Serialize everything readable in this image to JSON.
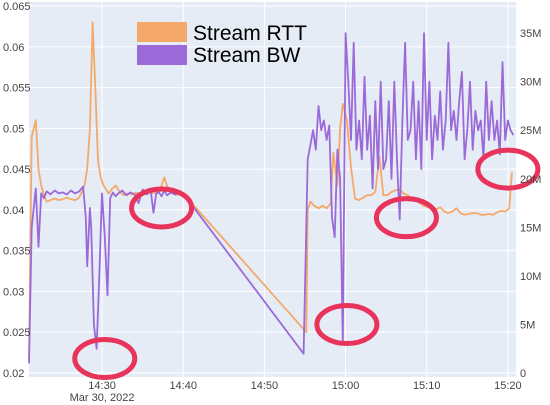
{
  "chart_data": {
    "type": "line",
    "title": "",
    "xlabel": "",
    "ylabel": "",
    "y2label": "",
    "x_ticks": [
      "14:30",
      "14:40",
      "14:50",
      "15:00",
      "15:10",
      "15:20"
    ],
    "x_subtick": "Mar 30, 2022",
    "y_left_ticks": [
      "0.02",
      "0.025",
      "0.03",
      "0.035",
      "0.04",
      "0.045",
      "0.05",
      "0.055",
      "0.06",
      "0.065"
    ],
    "y_right_ticks": [
      "0",
      "5M",
      "10M",
      "15M",
      "20M",
      "25M",
      "30M",
      "35M"
    ],
    "ylim_left": [
      0.0195,
      0.0655
    ],
    "ylim_right": [
      -0.4,
      38.2
    ],
    "xlim": [
      "14:21:00",
      "15:21:00"
    ],
    "legend_position": "top",
    "grid": true,
    "series": [
      {
        "name": "Stream RTT",
        "axis": "left",
        "color": "#f4a86a",
        "x": [
          "14:21:00",
          "14:21:20",
          "14:21:50",
          "14:22:10",
          "14:22:30",
          "14:22:50",
          "14:23:10",
          "14:23:40",
          "14:24:10",
          "14:24:40",
          "14:25:10",
          "14:25:40",
          "14:26:10",
          "14:26:40",
          "14:27:10",
          "14:27:30",
          "14:27:50",
          "14:28:10",
          "14:28:30",
          "14:28:50",
          "14:29:10",
          "14:29:30",
          "14:29:50",
          "14:30:10",
          "14:30:30",
          "14:30:50",
          "14:31:10",
          "14:31:40",
          "14:32:10",
          "14:32:40",
          "14:33:10",
          "14:33:40",
          "14:34:10",
          "14:34:40",
          "14:35:10",
          "14:35:40",
          "14:36:10",
          "14:36:40",
          "14:37:10",
          "14:37:40",
          "14:38:10",
          "14:38:40",
          "14:39:10",
          "14:39:40",
          "14:40:00",
          "14:55:10",
          "14:55:20",
          "14:55:40",
          "14:56:10",
          "14:56:40",
          "14:57:10",
          "14:57:40",
          "14:58:10",
          "14:58:30",
          "14:59:00",
          "14:59:20",
          "14:59:40",
          "15:00:10",
          "15:00:40",
          "15:01:10",
          "15:01:40",
          "15:02:10",
          "15:02:40",
          "15:03:10",
          "15:03:40",
          "15:04:10",
          "15:04:40",
          "15:05:10",
          "15:05:40",
          "15:06:10",
          "15:06:40",
          "15:07:10",
          "15:07:40",
          "15:08:10",
          "15:08:40",
          "15:09:10",
          "15:09:40",
          "15:10:10",
          "15:10:40",
          "15:11:10",
          "15:11:40",
          "15:12:10",
          "15:12:40",
          "15:13:10",
          "15:13:40",
          "15:14:10",
          "15:14:40",
          "15:15:10",
          "15:15:40",
          "15:16:10",
          "15:16:40",
          "15:17:10",
          "15:17:40",
          "15:18:10",
          "15:18:40",
          "15:19:10",
          "15:19:40",
          "15:20:10",
          "15:20:30"
        ],
        "values": [
          0.0215,
          0.049,
          0.051,
          0.045,
          0.043,
          0.0418,
          0.041,
          0.0412,
          0.0414,
          0.0412,
          0.0413,
          0.0415,
          0.0413,
          0.0412,
          0.0415,
          0.0422,
          0.043,
          0.045,
          0.05,
          0.063,
          0.055,
          0.046,
          0.044,
          0.043,
          0.0425,
          0.042,
          0.0425,
          0.043,
          0.0422,
          0.0418,
          0.042,
          0.0419,
          0.0421,
          0.042,
          0.0422,
          0.0425,
          0.042,
          0.0422,
          0.0425,
          0.044,
          0.0425,
          0.042,
          0.0418,
          0.0423,
          0.042,
          0.025,
          0.04,
          0.041,
          0.0405,
          0.0402,
          0.0405,
          0.0402,
          0.0408,
          0.047,
          0.043,
          0.05,
          0.053,
          0.051,
          0.0452,
          0.0414,
          0.0412,
          0.0415,
          0.0418,
          0.0418,
          0.0422,
          0.0465,
          0.0418,
          0.0418,
          0.0422,
          0.0424,
          0.0425,
          0.042,
          0.0418,
          0.0413,
          0.0412,
          0.0408,
          0.0405,
          0.0403,
          0.0402,
          0.0401,
          0.0403,
          0.0398,
          0.0396,
          0.0398,
          0.0402,
          0.0396,
          0.0394,
          0.0395,
          0.0396,
          0.0396,
          0.0394,
          0.0394,
          0.0395,
          0.0394,
          0.0397,
          0.0399,
          0.0398,
          0.0402,
          0.0446
        ]
      },
      {
        "name": "Stream BW",
        "axis": "right",
        "color": "#9b6ad8",
        "x": [
          "14:21:00",
          "14:21:20",
          "14:21:50",
          "14:22:10",
          "14:22:30",
          "14:22:50",
          "14:23:10",
          "14:23:40",
          "14:24:10",
          "14:24:40",
          "14:25:10",
          "14:25:40",
          "14:26:10",
          "14:26:40",
          "14:27:10",
          "14:27:40",
          "14:28:00",
          "14:28:10",
          "14:28:30",
          "14:28:40",
          "14:29:00",
          "14:29:20",
          "14:29:40",
          "14:30:00",
          "14:30:20",
          "14:30:40",
          "14:31:00",
          "14:31:20",
          "14:31:40",
          "14:32:00",
          "14:32:30",
          "14:33:00",
          "14:33:30",
          "14:34:00",
          "14:34:30",
          "14:35:00",
          "14:35:30",
          "14:36:00",
          "14:36:20",
          "14:36:40",
          "14:37:00",
          "14:37:20",
          "14:37:40",
          "14:38:00",
          "14:38:30",
          "14:39:00",
          "14:39:30",
          "14:40:00",
          "14:54:50",
          "14:55:10",
          "14:55:20",
          "14:55:40",
          "14:56:00",
          "14:56:20",
          "14:56:40",
          "14:57:00",
          "14:57:20",
          "14:57:40",
          "14:58:00",
          "14:58:20",
          "14:58:40",
          "14:59:00",
          "14:59:20",
          "14:59:40",
          "15:00:00",
          "15:00:20",
          "15:00:40",
          "15:01:00",
          "15:01:20",
          "15:01:40",
          "15:02:00",
          "15:02:20",
          "15:02:40",
          "15:03:00",
          "15:03:20",
          "15:03:40",
          "15:04:00",
          "15:04:20",
          "15:04:40",
          "15:05:00",
          "15:05:20",
          "15:05:40",
          "15:06:00",
          "15:06:20",
          "15:06:40",
          "15:07:00",
          "15:07:20",
          "15:07:40",
          "15:08:00",
          "15:08:20",
          "15:08:40",
          "15:09:00",
          "15:09:20",
          "15:09:40",
          "15:10:00",
          "15:10:20",
          "15:10:40",
          "15:11:00",
          "15:11:20",
          "15:11:40",
          "15:12:00",
          "15:12:20",
          "15:12:40",
          "15:13:00",
          "15:13:20",
          "15:13:40",
          "15:14:00",
          "15:14:20",
          "15:14:40",
          "15:15:00",
          "15:15:20",
          "15:15:40",
          "15:16:00",
          "15:16:20",
          "15:16:40",
          "15:17:00",
          "15:17:20",
          "15:17:40",
          "15:18:00",
          "15:18:20",
          "15:18:40",
          "15:19:00",
          "15:19:20",
          "15:19:40",
          "15:20:00",
          "15:20:20",
          "15:20:40"
        ],
        "values": [
          1.0,
          15.0,
          19.0,
          13.0,
          18.5,
          18.0,
          18.7,
          18.4,
          18.8,
          18.5,
          18.6,
          18.4,
          18.8,
          18.5,
          18.7,
          19.2,
          16.0,
          11.0,
          17.0,
          15.0,
          5.0,
          2.5,
          10.0,
          18.5,
          14.0,
          8.0,
          18.0,
          18.6,
          18.2,
          18.5,
          18.8,
          18.3,
          18.6,
          18.4,
          17.5,
          18.9,
          18.4,
          18.7,
          16.5,
          18.5,
          18.6,
          18.2,
          18.8,
          18.3,
          18.6,
          18.4,
          18.6,
          18.5,
          2.0,
          15.0,
          22.0,
          23.5,
          25.0,
          23.0,
          27.5,
          25.0,
          26.0,
          24.0,
          25.5,
          16.0,
          14.0,
          23.0,
          20.0,
          3.0,
          35.0,
          30.0,
          24.0,
          34.0,
          23.0,
          26.0,
          22.0,
          30.5,
          23.0,
          26.5,
          19.0,
          28.0,
          21.0,
          30.0,
          21.0,
          22.0,
          28.0,
          20.0,
          30.0,
          22.0,
          15.8,
          26.0,
          34.0,
          24.0,
          25.0,
          30.0,
          22.0,
          28.0,
          21.0,
          35.0,
          24.0,
          30.0,
          22.0,
          26.5,
          24.0,
          29.0,
          23.0,
          26.0,
          34.0,
          25.0,
          27.0,
          24.0,
          28.0,
          31.0,
          22.0,
          25.0,
          30.0,
          23.0,
          27.0,
          25.0,
          26.0,
          22.0,
          30.0,
          24.0,
          28.0,
          24.0,
          26.0,
          22.5,
          32.0,
          24.0,
          26.0,
          25.0,
          24.5
        ]
      }
    ],
    "annotations": [
      {
        "shape": "ellipse",
        "color": "#e8335a",
        "x": "14:30:20",
        "y_right": 1.5
      },
      {
        "shape": "ellipse",
        "color": "#e8335a",
        "x": "14:37:20",
        "y_right": 17.0
      },
      {
        "shape": "ellipse",
        "color": "#e8335a",
        "x": "15:00:10",
        "y_right": 5.0
      },
      {
        "shape": "ellipse",
        "color": "#e8335a",
        "x": "15:07:30",
        "y_right": 16.0
      },
      {
        "shape": "ellipse",
        "color": "#e8335a",
        "x": "15:20:00",
        "y_right": 21.0
      }
    ]
  }
}
